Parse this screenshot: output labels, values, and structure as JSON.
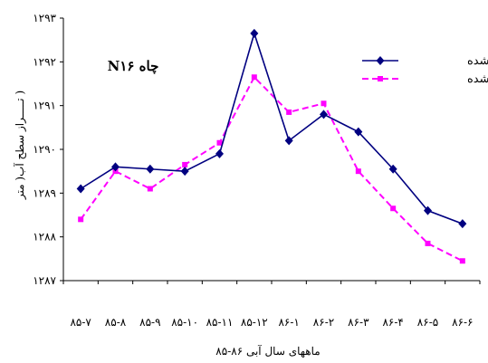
{
  "chart_data": {
    "type": "line",
    "categories": [
      "85-7",
      "85-8",
      "85-9",
      "85-10",
      "85-11",
      "85-12",
      "86-1",
      "86-2",
      "86-3",
      "86-4",
      "86-5",
      "86-6"
    ],
    "category_labels": [
      "۸۵-۷",
      "۸۵-۸",
      "۸۵-۹",
      "۸۵-۱۰",
      "۸۵-۱۱",
      "۸۵-۱۲",
      "۸۶-۱",
      "۸۶-۲",
      "۸۶-۳",
      "۸۶-۴",
      "۸۶-۵",
      "۸۶-۶"
    ],
    "series": [
      {
        "name": "مشاهده شده",
        "color": "#000080",
        "marker": "diamond",
        "dash": "solid",
        "values": [
          1289.1,
          1289.6,
          1289.55,
          1289.5,
          1289.9,
          1292.65,
          1290.2,
          1290.8,
          1290.4,
          1289.55,
          1288.6,
          1288.3
        ]
      },
      {
        "name": "محاسبه شده",
        "color": "#ff00ff",
        "marker": "square",
        "dash": "dashed",
        "values": [
          1288.4,
          1289.5,
          1289.1,
          1289.65,
          1290.15,
          1291.65,
          1290.85,
          1291.05,
          1289.5,
          1288.65,
          1287.85,
          1287.45
        ]
      }
    ],
    "ylim": [
      1287,
      1293
    ],
    "yticks": [
      1287,
      1288,
      1289,
      1290,
      1291,
      1292,
      1293
    ],
    "ytick_labels": [
      "۱۲۸۷",
      "۱۲۸۸",
      "۱۲۸۹",
      "۱۲۹۰",
      "۱۲۹۱",
      "۱۲۹۲",
      "۱۲۹۳"
    ],
    "xlabel": "ماههای سال آبی ۸۶-۸۵",
    "ylabel": "( تـــــراز سطح آب( متر",
    "annotation": "چاه N۱۶",
    "legend_position": "top-right",
    "grid": false
  }
}
